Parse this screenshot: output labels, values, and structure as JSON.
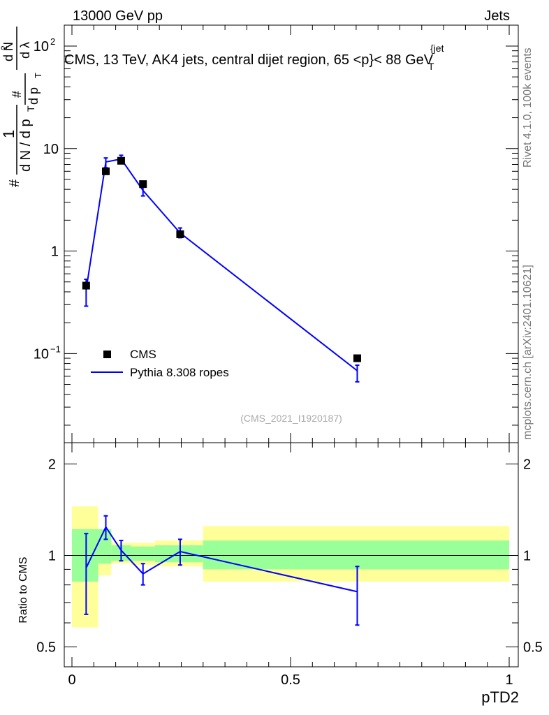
{
  "header": {
    "energy": "13000 GeV pp",
    "category": "Jets"
  },
  "side_labels": {
    "rivet": "Rivet 4.1.0,  100k events",
    "source": "mcplots.cern.ch [arXiv:2401.10621]"
  },
  "colors": {
    "data": "#000000",
    "mc": "#0000ff",
    "band_inner": "#99ff99",
    "band_outer": "#ffff99"
  },
  "chart_data": [
    {
      "type": "scatter",
      "title": "CMS, 13 TeV, AK4 jets, central dijet region, 65 <p_T^{jet}< 88 GeV",
      "analysis_id": "(CMS_2021_I1920187)",
      "xlabel": "pTD2",
      "ylabel": "1/(dN/dp_T) d²N/(dp_T dλ)",
      "ylabel_parts": {
        "main_hash": "#",
        "num": "1",
        "den": "d N / d p",
        "den_sub": "T",
        "frac2_num_hash": "#",
        "frac2_den": "d p",
        "frac2_sub": "T",
        "frac3_num": "d N",
        "frac3_sup": "2",
        "frac3_den": "d λ"
      },
      "yscale": "log",
      "xlim": [
        0,
        1
      ],
      "ylim": [
        0.0135,
        160
      ],
      "y_ticks": [
        {
          "value": 0.1,
          "label": "10",
          "exp": "−1"
        },
        {
          "value": 1,
          "label": "1",
          "exp": ""
        },
        {
          "value": 10,
          "label": "10",
          "exp": ""
        },
        {
          "value": 100,
          "label": "10",
          "exp": "2"
        }
      ],
      "legend": {
        "position": "lower-left",
        "entries": [
          {
            "label": "CMS",
            "marker": "square"
          },
          {
            "label": "Pythia 8.308 ropes",
            "marker": "line"
          }
        ]
      },
      "series": [
        {
          "name": "CMS",
          "x": [
            0.0325,
            0.0775,
            0.1125,
            0.1625,
            0.2475,
            0.6525
          ],
          "y": [
            0.46,
            6.0,
            7.6,
            4.5,
            1.46,
            0.09
          ]
        },
        {
          "name": "Pythia 8.308 ropes",
          "x": [
            0.0325,
            0.0775,
            0.1125,
            0.1625,
            0.2475,
            0.6525
          ],
          "y": [
            0.42,
            7.4,
            7.9,
            3.9,
            1.5,
            0.068
          ],
          "y_err_low": [
            0.29,
            6.5,
            7.2,
            3.45,
            1.35,
            0.053
          ],
          "y_err_high": [
            0.53,
            8.1,
            8.6,
            4.35,
            1.68,
            0.077
          ]
        }
      ]
    },
    {
      "type": "line",
      "ylabel": "Ratio to CMS",
      "xlabel": "pTD2",
      "yscale": "log",
      "xlim": [
        0,
        1
      ],
      "ylim": [
        0.43,
        2.35
      ],
      "x_ticks": [
        {
          "value": 0,
          "label": "0"
        },
        {
          "value": 0.5,
          "label": "0.5"
        },
        {
          "value": 1,
          "label": "1"
        }
      ],
      "y_ticks": [
        {
          "value": 0.5,
          "label": "0.5"
        },
        {
          "value": 1,
          "label": "1"
        },
        {
          "value": 2,
          "label": "2"
        }
      ],
      "bands": [
        {
          "x0": 0.0,
          "x1": 0.06,
          "inner": [
            0.82,
            1.22
          ],
          "outer": [
            0.58,
            1.45
          ]
        },
        {
          "x0": 0.06,
          "x1": 0.09,
          "inner": [
            0.94,
            1.22
          ],
          "outer": [
            0.86,
            1.22
          ]
        },
        {
          "x0": 0.09,
          "x1": 0.135,
          "inner": [
            0.96,
            1.08
          ],
          "outer": [
            0.94,
            1.1
          ]
        },
        {
          "x0": 0.135,
          "x1": 0.19,
          "inner": [
            0.96,
            1.07
          ],
          "outer": [
            0.93,
            1.1
          ]
        },
        {
          "x0": 0.19,
          "x1": 0.3,
          "inner": [
            0.95,
            1.08
          ],
          "outer": [
            0.92,
            1.12
          ]
        },
        {
          "x0": 0.3,
          "x1": 1.0,
          "inner": [
            0.9,
            1.12
          ],
          "outer": [
            0.82,
            1.25
          ]
        }
      ],
      "series": [
        {
          "name": "Pythia 8.308 ropes / CMS",
          "x": [
            0.0325,
            0.0775,
            0.1125,
            0.1625,
            0.2475,
            0.6525
          ],
          "y": [
            0.91,
            1.24,
            1.04,
            0.87,
            1.03,
            0.76
          ],
          "y_err_low": [
            0.64,
            1.13,
            0.96,
            0.8,
            0.93,
            0.59
          ],
          "y_err_high": [
            1.18,
            1.35,
            1.12,
            0.94,
            1.13,
            0.92
          ]
        }
      ]
    }
  ]
}
